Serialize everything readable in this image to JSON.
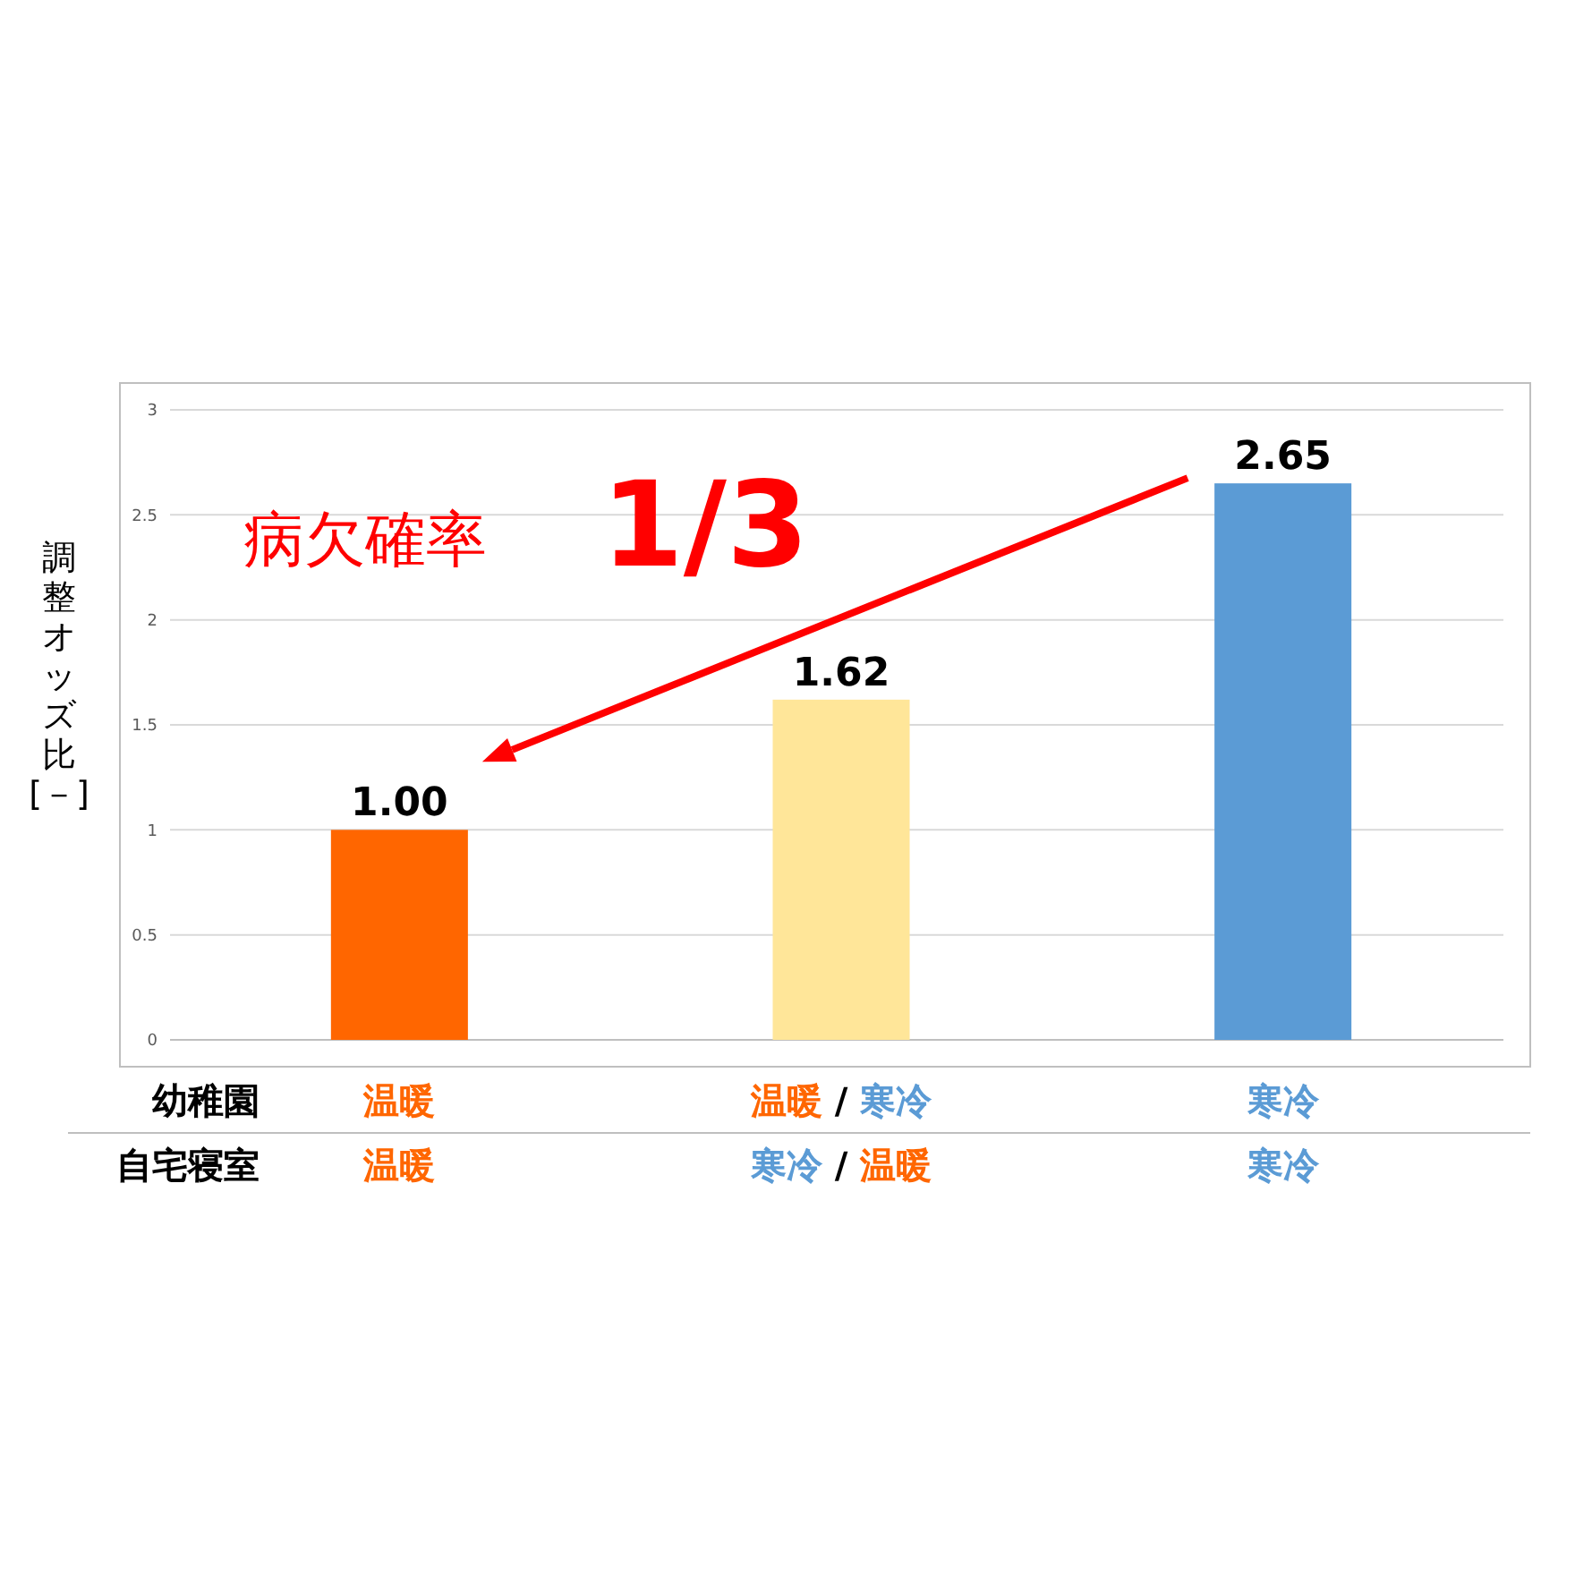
{
  "chart_data": {
    "type": "bar",
    "categories": [
      "温暖",
      "温暖 / 寒冷",
      "寒冷"
    ],
    "values": [
      1.0,
      1.62,
      2.65
    ],
    "value_labels": [
      "1.00",
      "1.62",
      "2.65"
    ],
    "colors": [
      "#ff6600",
      "#ffe699",
      "#5b9bd5"
    ],
    "xlabel": "幼稚園",
    "ylabel": "調整オッズ比\n[－]",
    "ylim": [
      0,
      3
    ],
    "yticks": [
      0,
      0.5,
      1,
      1.5,
      2,
      2.5,
      3
    ],
    "grid": "y",
    "annotations": [
      "病欠確率",
      "1/3",
      "自宅寝室",
      "温暖",
      "寒冷 / 温暖",
      "寒冷"
    ]
  }
}
